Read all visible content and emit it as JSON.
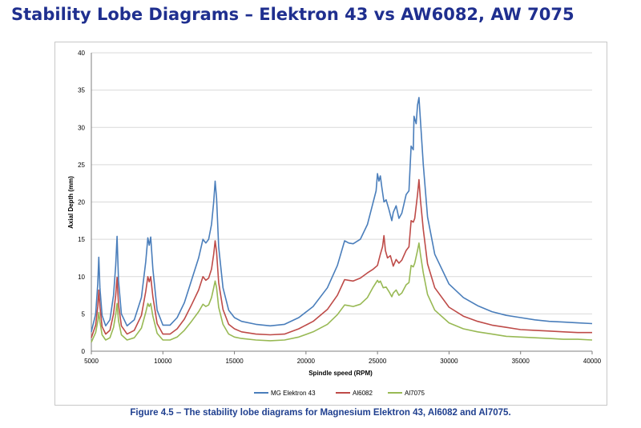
{
  "slide": {
    "title": "Stability Lobe Diagrams – Elektron 43 vs AW6082, AW 7075"
  },
  "caption": "Figure 4.5 – The stability lobe diagrams for Magnesium Elektron 43, Al6082 and Al7075.",
  "colors": {
    "mg_elektron_43": "#4a7ebb",
    "al6082": "#be4b48",
    "al7075": "#98b954",
    "grid": "#d9d9d9",
    "axis": "#7f7f7f"
  },
  "chart_data": {
    "type": "line",
    "title": "",
    "xlabel": "Spindle speed (RPM)",
    "ylabel": "Axial Depth (mm)",
    "xlim": [
      5000,
      40000
    ],
    "ylim": [
      0,
      40
    ],
    "xticks": [
      "5000",
      "10000",
      "15000",
      "20000",
      "25000",
      "30000",
      "35000",
      "40000"
    ],
    "yticks": [
      "0",
      "5",
      "10",
      "15",
      "20",
      "25",
      "30",
      "35",
      "40"
    ],
    "grid": true,
    "legend_position": "bottom",
    "series": [
      {
        "name": "MG Elektron 43",
        "color": "#4a7ebb",
        "points": [
          [
            5000,
            2.6
          ],
          [
            5300,
            5
          ],
          [
            5450,
            9
          ],
          [
            5520,
            12.6
          ],
          [
            5600,
            8.5
          ],
          [
            5750,
            4.8
          ],
          [
            6000,
            3.4
          ],
          [
            6300,
            4.2
          ],
          [
            6550,
            7.5
          ],
          [
            6700,
            11.5
          ],
          [
            6800,
            15.4
          ],
          [
            6900,
            9.5
          ],
          [
            7100,
            5
          ],
          [
            7500,
            3.4
          ],
          [
            8000,
            4.2
          ],
          [
            8500,
            7.2
          ],
          [
            8800,
            12
          ],
          [
            8950,
            15.2
          ],
          [
            9050,
            14.2
          ],
          [
            9150,
            15.3
          ],
          [
            9300,
            11
          ],
          [
            9600,
            5.5
          ],
          [
            10000,
            3.5
          ],
          [
            10500,
            3.5
          ],
          [
            11000,
            4.5
          ],
          [
            11500,
            6.5
          ],
          [
            12000,
            9.5
          ],
          [
            12500,
            12.5
          ],
          [
            12800,
            15
          ],
          [
            13000,
            14.5
          ],
          [
            13200,
            15
          ],
          [
            13400,
            17
          ],
          [
            13550,
            20
          ],
          [
            13650,
            22.8
          ],
          [
            13750,
            20.5
          ],
          [
            13900,
            14
          ],
          [
            14200,
            8.5
          ],
          [
            14600,
            5.5
          ],
          [
            15000,
            4.5
          ],
          [
            15500,
            4
          ],
          [
            16500,
            3.6
          ],
          [
            17500,
            3.4
          ],
          [
            18500,
            3.6
          ],
          [
            19500,
            4.5
          ],
          [
            20500,
            6
          ],
          [
            21500,
            8.5
          ],
          [
            22200,
            11.5
          ],
          [
            22700,
            14.8
          ],
          [
            23000,
            14.5
          ],
          [
            23300,
            14.4
          ],
          [
            23800,
            15
          ],
          [
            24300,
            17
          ],
          [
            24700,
            20
          ],
          [
            24900,
            21.5
          ],
          [
            25000,
            23.8
          ],
          [
            25100,
            22.8
          ],
          [
            25200,
            23.5
          ],
          [
            25300,
            22
          ],
          [
            25450,
            20
          ],
          [
            25600,
            20.3
          ],
          [
            25800,
            19
          ],
          [
            26000,
            17.5
          ],
          [
            26100,
            18.6
          ],
          [
            26300,
            19.5
          ],
          [
            26500,
            17.8
          ],
          [
            26700,
            18.5
          ],
          [
            27000,
            21
          ],
          [
            27200,
            21.5
          ],
          [
            27350,
            27.5
          ],
          [
            27500,
            27
          ],
          [
            27550,
            31.5
          ],
          [
            27700,
            30.5
          ],
          [
            27800,
            33
          ],
          [
            27900,
            34
          ],
          [
            28000,
            31
          ],
          [
            28200,
            25
          ],
          [
            28500,
            18
          ],
          [
            29000,
            13
          ],
          [
            30000,
            9
          ],
          [
            31000,
            7.2
          ],
          [
            32000,
            6.1
          ],
          [
            33000,
            5.3
          ],
          [
            34000,
            4.8
          ],
          [
            35000,
            4.5
          ],
          [
            36000,
            4.2
          ],
          [
            37000,
            4.0
          ],
          [
            38000,
            3.9
          ],
          [
            39000,
            3.8
          ],
          [
            40000,
            3.7
          ]
        ]
      },
      {
        "name": "Al6082",
        "color": "#be4b48",
        "points": [
          [
            5000,
            1.8
          ],
          [
            5300,
            3.5
          ],
          [
            5450,
            6
          ],
          [
            5520,
            8.2
          ],
          [
            5600,
            6
          ],
          [
            5750,
            3.3
          ],
          [
            6000,
            2.3
          ],
          [
            6300,
            2.8
          ],
          [
            6550,
            5
          ],
          [
            6700,
            7.5
          ],
          [
            6800,
            9.9
          ],
          [
            6900,
            6.3
          ],
          [
            7100,
            3.4
          ],
          [
            7500,
            2.3
          ],
          [
            8000,
            2.8
          ],
          [
            8500,
            4.8
          ],
          [
            8800,
            8
          ],
          [
            8950,
            10
          ],
          [
            9050,
            9.3
          ],
          [
            9150,
            10
          ],
          [
            9300,
            7.3
          ],
          [
            9600,
            3.7
          ],
          [
            10000,
            2.3
          ],
          [
            10500,
            2.3
          ],
          [
            11000,
            3
          ],
          [
            11500,
            4.3
          ],
          [
            12000,
            6.2
          ],
          [
            12500,
            8.2
          ],
          [
            12800,
            10
          ],
          [
            13000,
            9.5
          ],
          [
            13200,
            9.8
          ],
          [
            13400,
            11
          ],
          [
            13550,
            13
          ],
          [
            13650,
            14.8
          ],
          [
            13750,
            13.3
          ],
          [
            13900,
            9.2
          ],
          [
            14200,
            5.6
          ],
          [
            14600,
            3.6
          ],
          [
            15000,
            3
          ],
          [
            15500,
            2.6
          ],
          [
            16500,
            2.3
          ],
          [
            17500,
            2.2
          ],
          [
            18500,
            2.3
          ],
          [
            19500,
            3
          ],
          [
            20500,
            4
          ],
          [
            21500,
            5.6
          ],
          [
            22200,
            7.5
          ],
          [
            22700,
            9.6
          ],
          [
            23000,
            9.5
          ],
          [
            23300,
            9.4
          ],
          [
            23800,
            9.8
          ],
          [
            24300,
            10.5
          ],
          [
            24700,
            11
          ],
          [
            25000,
            11.5
          ],
          [
            25200,
            13
          ],
          [
            25350,
            14
          ],
          [
            25450,
            15.5
          ],
          [
            25550,
            13.5
          ],
          [
            25700,
            12.5
          ],
          [
            25900,
            12.8
          ],
          [
            26100,
            11.4
          ],
          [
            26300,
            12.3
          ],
          [
            26500,
            11.8
          ],
          [
            26700,
            12.2
          ],
          [
            27000,
            13.5
          ],
          [
            27200,
            14
          ],
          [
            27350,
            17.5
          ],
          [
            27500,
            17.3
          ],
          [
            27600,
            17.8
          ],
          [
            27800,
            21
          ],
          [
            27900,
            23
          ],
          [
            28000,
            20.3
          ],
          [
            28200,
            16.3
          ],
          [
            28500,
            11.7
          ],
          [
            29000,
            8.5
          ],
          [
            30000,
            5.9
          ],
          [
            31000,
            4.7
          ],
          [
            32000,
            4.0
          ],
          [
            33000,
            3.5
          ],
          [
            34000,
            3.2
          ],
          [
            35000,
            2.9
          ],
          [
            36000,
            2.8
          ],
          [
            37000,
            2.7
          ],
          [
            38000,
            2.6
          ],
          [
            39000,
            2.5
          ],
          [
            40000,
            2.5
          ]
        ]
      },
      {
        "name": "Al7075",
        "color": "#98b954",
        "points": [
          [
            5000,
            1.2
          ],
          [
            5300,
            2.5
          ],
          [
            5450,
            4
          ],
          [
            5520,
            5.2
          ],
          [
            5600,
            4
          ],
          [
            5750,
            2.2
          ],
          [
            6000,
            1.5
          ],
          [
            6300,
            1.8
          ],
          [
            6550,
            3.2
          ],
          [
            6700,
            4.9
          ],
          [
            6800,
            6.4
          ],
          [
            6900,
            4.1
          ],
          [
            7100,
            2.2
          ],
          [
            7500,
            1.5
          ],
          [
            8000,
            1.8
          ],
          [
            8500,
            3.1
          ],
          [
            8800,
            5.2
          ],
          [
            8950,
            6.4
          ],
          [
            9050,
            6
          ],
          [
            9150,
            6.4
          ],
          [
            9300,
            4.7
          ],
          [
            9600,
            2.4
          ],
          [
            10000,
            1.5
          ],
          [
            10500,
            1.5
          ],
          [
            11000,
            1.9
          ],
          [
            11500,
            2.8
          ],
          [
            12000,
            4
          ],
          [
            12500,
            5.3
          ],
          [
            12800,
            6.3
          ],
          [
            13000,
            6
          ],
          [
            13200,
            6.2
          ],
          [
            13400,
            7.2
          ],
          [
            13550,
            8.5
          ],
          [
            13650,
            9.4
          ],
          [
            13750,
            8.5
          ],
          [
            13900,
            5.9
          ],
          [
            14200,
            3.6
          ],
          [
            14600,
            2.3
          ],
          [
            15000,
            1.9
          ],
          [
            15500,
            1.7
          ],
          [
            16500,
            1.5
          ],
          [
            17500,
            1.4
          ],
          [
            18500,
            1.5
          ],
          [
            19500,
            1.9
          ],
          [
            20500,
            2.6
          ],
          [
            21500,
            3.6
          ],
          [
            22200,
            4.9
          ],
          [
            22700,
            6.2
          ],
          [
            23000,
            6.1
          ],
          [
            23300,
            6
          ],
          [
            23800,
            6.3
          ],
          [
            24300,
            7.2
          ],
          [
            24700,
            8.6
          ],
          [
            25000,
            9.5
          ],
          [
            25100,
            9.2
          ],
          [
            25200,
            9.4
          ],
          [
            25400,
            8.5
          ],
          [
            25600,
            8.6
          ],
          [
            25800,
            8
          ],
          [
            26000,
            7.3
          ],
          [
            26100,
            7.8
          ],
          [
            26300,
            8.2
          ],
          [
            26500,
            7.5
          ],
          [
            26700,
            7.8
          ],
          [
            27000,
            8.9
          ],
          [
            27200,
            9.2
          ],
          [
            27350,
            11.5
          ],
          [
            27500,
            11.3
          ],
          [
            27600,
            11.8
          ],
          [
            27800,
            13.5
          ],
          [
            27900,
            14.5
          ],
          [
            28000,
            13
          ],
          [
            28200,
            10.5
          ],
          [
            28500,
            7.6
          ],
          [
            29000,
            5.5
          ],
          [
            30000,
            3.8
          ],
          [
            31000,
            3.0
          ],
          [
            32000,
            2.6
          ],
          [
            33000,
            2.3
          ],
          [
            34000,
            2.0
          ],
          [
            35000,
            1.9
          ],
          [
            36000,
            1.8
          ],
          [
            37000,
            1.7
          ],
          [
            38000,
            1.6
          ],
          [
            39000,
            1.6
          ],
          [
            40000,
            1.5
          ]
        ]
      }
    ]
  }
}
